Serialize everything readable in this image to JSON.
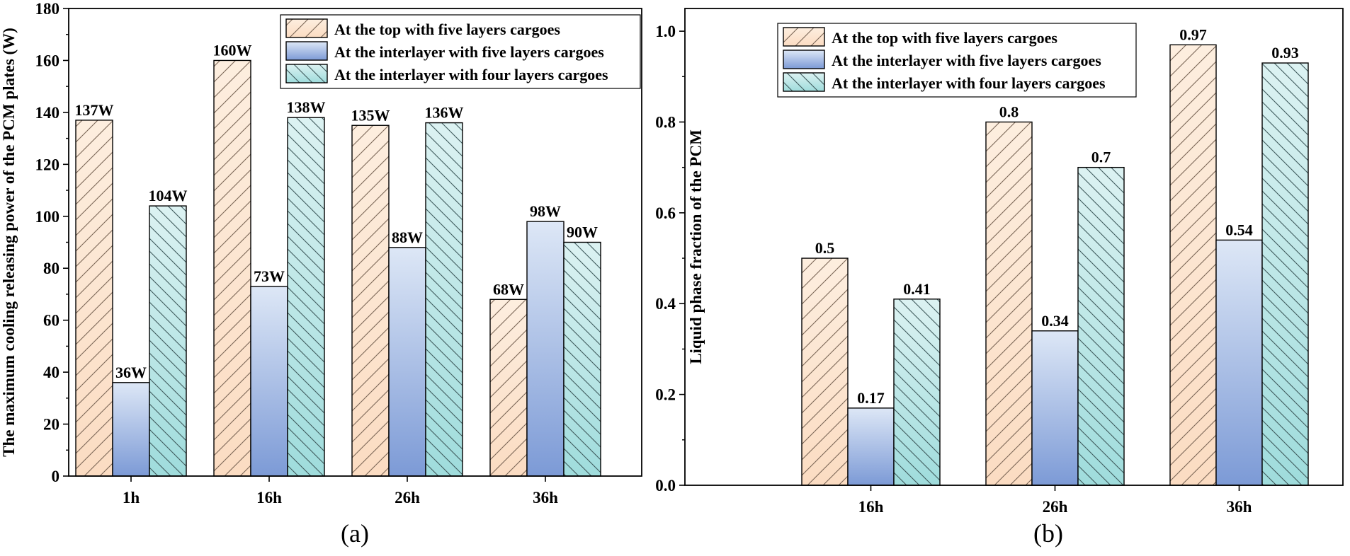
{
  "colors": {
    "top_fill": "#fbe0c9",
    "top_fill_light": "#fdeedf",
    "top_hatch": "#7a6656",
    "interlayer5_top": "#d8e3f4",
    "interlayer5_bottom": "#7c9ad6",
    "interlayer4_fill": "#a9e1e1",
    "interlayer4_fill_light": "#d8f1f1",
    "interlayer4_hatch": "#3f5a5c",
    "frame": "#000000"
  },
  "chart_data": [
    {
      "type": "bar",
      "caption": "(a)",
      "title": "",
      "xlabel": "",
      "ylabel": "The maximum cooling releasing power of the PCM plates (W)",
      "ylim": [
        0,
        180
      ],
      "yticks": [
        0,
        20,
        40,
        60,
        80,
        100,
        120,
        140,
        160,
        180
      ],
      "ytick_labels": [
        "0",
        "20",
        "40",
        "60",
        "80",
        "100",
        "120",
        "140",
        "160",
        "180"
      ],
      "categories": [
        "1h",
        "16h",
        "26h",
        "36h"
      ],
      "legend_position": "top-right",
      "series": [
        {
          "name": "At the top with five layers cargoes",
          "style": "top",
          "values": [
            137,
            160,
            135,
            68
          ],
          "labels": [
            "137W",
            "160W",
            "135W",
            "68W"
          ]
        },
        {
          "name": "At the interlayer with five layers cargoes",
          "style": "interlayer5",
          "values": [
            36,
            73,
            88,
            98
          ],
          "labels": [
            "36W",
            "73W",
            "88W",
            "98W"
          ]
        },
        {
          "name": "At the interlayer with four layers cargoes",
          "style": "interlayer4",
          "values": [
            104,
            138,
            136,
            90
          ],
          "labels": [
            "104W",
            "138W",
            "136W",
            "90W"
          ]
        }
      ]
    },
    {
      "type": "bar",
      "caption": "(b)",
      "title": "",
      "xlabel": "",
      "ylabel": "Liquid phase fraction of the PCM",
      "ylim": [
        0,
        1.05
      ],
      "yticks": [
        0,
        0.2,
        0.4,
        0.6,
        0.8,
        1.0
      ],
      "ytick_labels": [
        "0.0",
        "0.2",
        "0.4",
        "0.6",
        "0.8",
        "1.0"
      ],
      "categories": [
        "16h",
        "26h",
        "36h"
      ],
      "legend_position": "top-left",
      "series": [
        {
          "name": "At the top with five layers cargoes",
          "style": "top",
          "values": [
            0.5,
            0.8,
            0.97
          ],
          "labels": [
            "0.5",
            "0.8",
            "0.97"
          ]
        },
        {
          "name": "At the interlayer with five layers cargoes",
          "style": "interlayer5",
          "values": [
            0.17,
            0.34,
            0.54
          ],
          "labels": [
            "0.17",
            "0.34",
            "0.54"
          ]
        },
        {
          "name": "At the interlayer with four layers cargoes",
          "style": "interlayer4",
          "values": [
            0.41,
            0.7,
            0.93
          ],
          "labels": [
            "0.41",
            "0.7",
            "0.93"
          ]
        }
      ]
    }
  ]
}
